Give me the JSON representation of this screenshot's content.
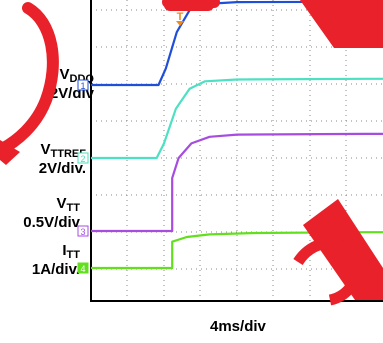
{
  "chart_data": {
    "type": "line",
    "title": "",
    "xlabel": "4ms/div",
    "ylabel": "",
    "x_unit": "ms",
    "x_per_div": 4,
    "grid": true,
    "trigger_marker": "T",
    "channels": [
      {
        "marker": "1",
        "name_main": "V",
        "name_sub": "DDQ",
        "scale": "2V/div",
        "color": "#1f4fd8",
        "points": [
          [
            0.0,
            0.0
          ],
          [
            7.4,
            0.0
          ],
          [
            8.2,
            0.45
          ],
          [
            9.4,
            1.45
          ],
          [
            10.8,
            2.05
          ],
          [
            12.5,
            2.22
          ],
          [
            16.0,
            2.27
          ],
          [
            30.0,
            2.28
          ],
          [
            37.0,
            2.28
          ]
        ]
      },
      {
        "marker": "2",
        "name_main": "V",
        "name_sub": "TTREF",
        "scale": "2V/div.",
        "color": "#4ee0c2",
        "points": [
          [
            0.0,
            0.0
          ],
          [
            7.2,
            0.0
          ],
          [
            8.0,
            0.4
          ],
          [
            9.3,
            1.35
          ],
          [
            10.8,
            1.9
          ],
          [
            12.5,
            2.1
          ],
          [
            16.0,
            2.15
          ],
          [
            30.0,
            2.17
          ],
          [
            37.0,
            2.17
          ]
        ]
      },
      {
        "marker": "3",
        "name_main": "V",
        "name_sub": "TT",
        "scale": "0.5V/div",
        "color": "#a64de0",
        "points": [
          [
            0.0,
            0.0
          ],
          [
            8.9,
            0.0
          ],
          [
            8.9,
            1.45
          ],
          [
            9.6,
            2.0
          ],
          [
            11.0,
            2.4
          ],
          [
            13.0,
            2.58
          ],
          [
            16.0,
            2.64
          ],
          [
            30.0,
            2.66
          ],
          [
            37.0,
            2.66
          ]
        ]
      },
      {
        "marker": "4",
        "name_main": "I",
        "name_sub": "TT",
        "scale": "1A/div.",
        "color": "#62e01e",
        "points": [
          [
            0.0,
            0.0
          ],
          [
            8.9,
            0.0
          ],
          [
            8.9,
            0.72
          ],
          [
            10.5,
            0.85
          ],
          [
            13.0,
            0.92
          ],
          [
            18.0,
            0.96
          ],
          [
            30.0,
            0.98
          ],
          [
            37.0,
            0.98
          ]
        ]
      }
    ]
  },
  "colors": {
    "watermark": "#e8212a",
    "frame": "#000000",
    "grid": "#8a8a8a",
    "trigger": "#f08a1c"
  }
}
